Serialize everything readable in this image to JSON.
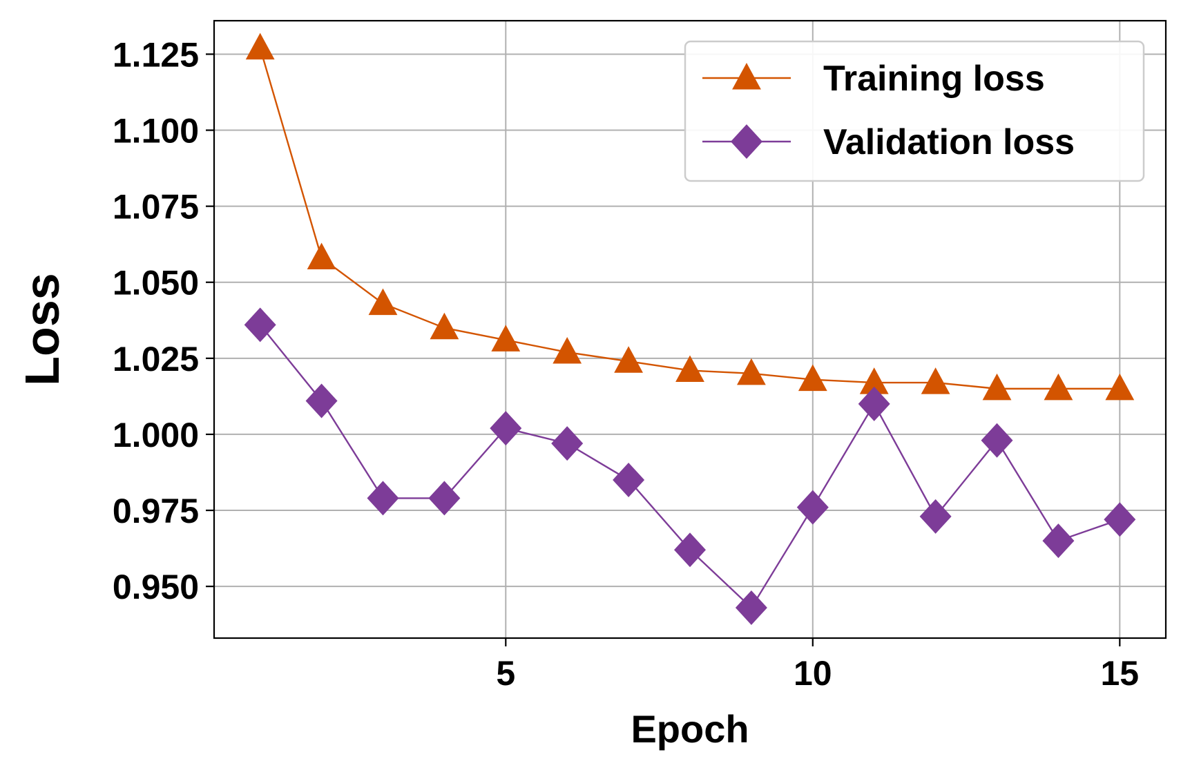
{
  "chart_data": {
    "type": "line",
    "xlabel": "Epoch",
    "ylabel": "Loss",
    "xlim": [
      0.25,
      15.75
    ],
    "ylim": [
      0.933,
      1.136
    ],
    "xticks": [
      5,
      10,
      15
    ],
    "xtick_labels": [
      "5",
      "10",
      "15"
    ],
    "yticks": [
      0.95,
      0.975,
      1.0,
      1.025,
      1.05,
      1.075,
      1.1,
      1.125
    ],
    "ytick_labels": [
      "0.950",
      "0.975",
      "1.000",
      "1.025",
      "1.050",
      "1.075",
      "1.100",
      "1.125"
    ],
    "grid": true,
    "legend_position": "top-right",
    "x": [
      1,
      2,
      3,
      4,
      5,
      6,
      7,
      8,
      9,
      10,
      11,
      12,
      13,
      14,
      15
    ],
    "series": [
      {
        "name": "Training loss",
        "marker": "triangle",
        "color": "#d35400",
        "values": [
          1.127,
          1.058,
          1.043,
          1.035,
          1.031,
          1.027,
          1.024,
          1.021,
          1.02,
          1.018,
          1.017,
          1.017,
          1.015,
          1.015,
          1.015
        ]
      },
      {
        "name": "Validation loss",
        "marker": "diamond",
        "color": "#7d3c98",
        "values": [
          1.036,
          1.011,
          0.979,
          0.979,
          1.002,
          0.997,
          0.985,
          0.962,
          0.943,
          0.976,
          1.01,
          0.973,
          0.998,
          0.965,
          0.972
        ]
      }
    ]
  }
}
